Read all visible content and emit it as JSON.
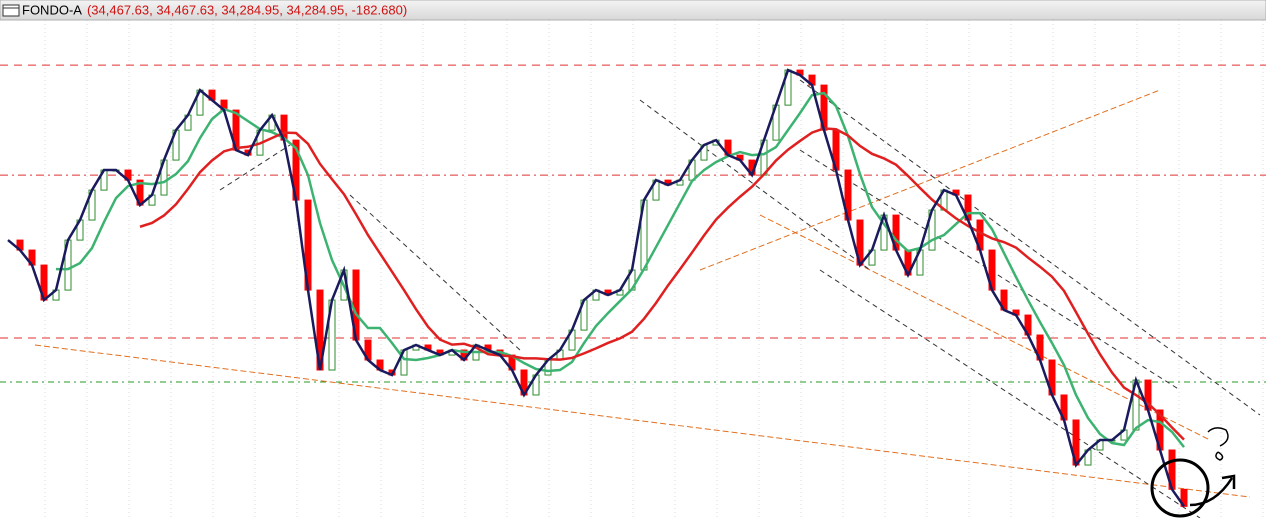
{
  "chart_data": {
    "type": "candlestick",
    "title": "FONDO-A",
    "subtitle": "(34,467.63, 34,467.63, 34,284.95, 34,284.95, -182.680)",
    "values": [
      37140,
      37033,
      36872,
      36497,
      36604,
      37140,
      37355,
      37676,
      37891,
      37891,
      37783,
      37515,
      37623,
      37998,
      38319,
      38480,
      38748,
      38641,
      38534,
      38105,
      38051,
      38319,
      38480,
      38212,
      37569,
      36604,
      35747,
      36497,
      36819,
      36068,
      35854,
      35747,
      35693,
      35961,
      36015,
      35961,
      35907,
      35961,
      35854,
      36015,
      35961,
      35907,
      35747,
      35479,
      35693,
      35854,
      35961,
      36175,
      36497,
      36604,
      36551,
      36604,
      36819,
      37569,
      37783,
      37730,
      37783,
      37998,
      38159,
      38212,
      38051,
      37998,
      37837,
      38212,
      38587,
      38963,
      38909,
      38802,
      38319,
      37891,
      37355,
      36872,
      37033,
      37408,
      37033,
      36765,
      37033,
      37462,
      37676,
      37623,
      37355,
      37033,
      36604,
      36390,
      36336,
      36122,
      35854,
      35479,
      35211,
      34728,
      34889,
      34996,
      34996,
      35103,
      35639,
      35318,
      34889,
      34467.63,
      34284.95
    ],
    "up_color": "#2e8b2e",
    "down_color": "#ff0000",
    "line_color": "#1a1a5e",
    "ma": [
      {
        "period": 5,
        "color": "#3cb371"
      },
      {
        "period": 12,
        "color": "#e02020"
      }
    ],
    "levels": [
      {
        "value": 39016,
        "color": "#e03030",
        "dash": "8 6"
      },
      {
        "value": 37837,
        "color": "#e03030",
        "dash": "8 4 2 4"
      },
      {
        "value": 36090,
        "color": "#e03030",
        "dash": "8 6"
      },
      {
        "value": 35618,
        "color": "#2a9a2a",
        "dash": "6 4 2 4"
      }
    ],
    "ylim": [
      34160,
      39500
    ],
    "grid": true
  }
}
